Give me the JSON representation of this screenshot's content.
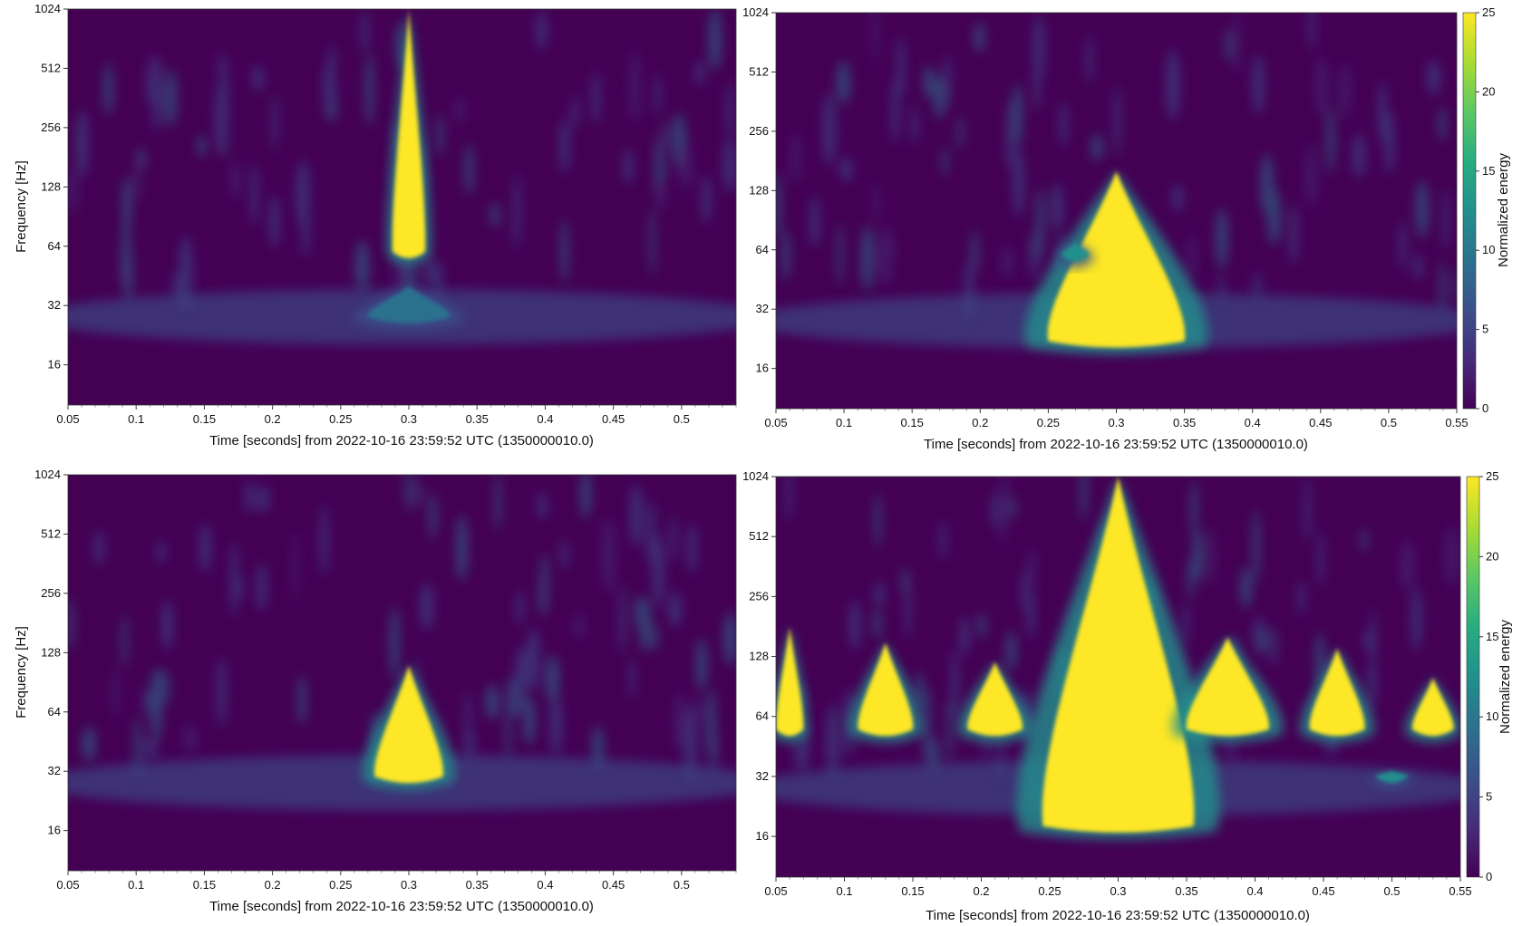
{
  "chart_data": [
    {
      "type": "heatmap",
      "title": "",
      "xlabel": "Time [seconds] from 2022-10-16 23:59:52 UTC (1350000010.0)",
      "ylabel": "Frequency [Hz]",
      "xlim": [
        0.05,
        0.54
      ],
      "ylim": [
        10,
        1024
      ],
      "yscale": "log",
      "xticks": [
        "0.05",
        "0.1",
        "0.15",
        "0.2",
        "0.25",
        "0.3",
        "0.35",
        "0.4",
        "0.45",
        "0.5"
      ],
      "yticks": [
        "16",
        "32",
        "64",
        "128",
        "256",
        "512",
        "1024"
      ],
      "colorbar": null,
      "blobs": [
        {
          "t": 0.3,
          "f": 60,
          "ft": 1024,
          "wt": 0.012,
          "energy": 25
        },
        {
          "t": 0.3,
          "f": 28,
          "ft": 40,
          "wt": 0.03,
          "energy": 10
        }
      ]
    },
    {
      "type": "heatmap",
      "title": "",
      "xlabel": "Time [seconds] from 2022-10-16 23:59:52 UTC (1350000010.0)",
      "ylabel": "",
      "xlim": [
        0.05,
        0.55
      ],
      "ylim": [
        10,
        1024
      ],
      "yscale": "log",
      "xticks": [
        "0.05",
        "0.1",
        "0.15",
        "0.2",
        "0.25",
        "0.3",
        "0.35",
        "0.4",
        "0.45",
        "0.5",
        "0.55"
      ],
      "yticks": [
        "16",
        "32",
        "64",
        "128",
        "256",
        "512",
        "1024"
      ],
      "colorbar": {
        "label": "Normalized energy",
        "ticks": [
          "0",
          "5",
          "10",
          "15",
          "20",
          "25"
        ],
        "vmin": 0,
        "vmax": 25
      },
      "blobs": [
        {
          "t": 0.3,
          "f": 22,
          "ft": 160,
          "wt": 0.05,
          "energy": 25
        },
        {
          "t": 0.27,
          "f": 60,
          "ft": 70,
          "wt": 0.01,
          "energy": 14
        }
      ]
    },
    {
      "type": "heatmap",
      "title": "",
      "xlabel": "Time [seconds] from 2022-10-16 23:59:52 UTC (1350000010.0)",
      "ylabel": "Frequency [Hz]",
      "xlim": [
        0.05,
        0.54
      ],
      "ylim": [
        10,
        1024
      ],
      "yscale": "log",
      "xticks": [
        "0.05",
        "0.1",
        "0.15",
        "0.2",
        "0.25",
        "0.3",
        "0.35",
        "0.4",
        "0.45",
        "0.5"
      ],
      "yticks": [
        "16",
        "32",
        "64",
        "128",
        "256",
        "512",
        "1024"
      ],
      "colorbar": null,
      "blobs": [
        {
          "t": 0.3,
          "f": 30,
          "ft": 110,
          "wt": 0.025,
          "energy": 25
        }
      ]
    },
    {
      "type": "heatmap",
      "title": "",
      "xlabel": "Time [seconds] from 2022-10-16 23:59:52 UTC (1350000010.0)",
      "ylabel": "",
      "xlim": [
        0.05,
        0.55
      ],
      "ylim": [
        10,
        1024
      ],
      "yscale": "log",
      "xticks": [
        "0.05",
        "0.1",
        "0.15",
        "0.2",
        "0.25",
        "0.3",
        "0.35",
        "0.4",
        "0.45",
        "0.5",
        "0.55"
      ],
      "yticks": [
        "16",
        "32",
        "64",
        "128",
        "256",
        "512",
        "1024"
      ],
      "colorbar": {
        "label": "Normalized energy",
        "ticks": [
          "0",
          "5",
          "10",
          "15",
          "20",
          "25"
        ],
        "vmin": 0,
        "vmax": 25
      },
      "blobs": [
        {
          "t": 0.3,
          "f": 18,
          "ft": 1024,
          "wt": 0.055,
          "energy": 25
        },
        {
          "t": 0.06,
          "f": 55,
          "ft": 180,
          "wt": 0.01,
          "energy": 25
        },
        {
          "t": 0.13,
          "f": 55,
          "ft": 150,
          "wt": 0.02,
          "energy": 25
        },
        {
          "t": 0.21,
          "f": 55,
          "ft": 120,
          "wt": 0.02,
          "energy": 25
        },
        {
          "t": 0.38,
          "f": 55,
          "ft": 160,
          "wt": 0.03,
          "energy": 25
        },
        {
          "t": 0.46,
          "f": 55,
          "ft": 140,
          "wt": 0.02,
          "energy": 25
        },
        {
          "t": 0.53,
          "f": 55,
          "ft": 100,
          "wt": 0.015,
          "energy": 25
        },
        {
          "t": 0.5,
          "f": 32,
          "ft": 34,
          "wt": 0.012,
          "energy": 14
        }
      ]
    }
  ],
  "colors": {
    "background": "#440154",
    "peak": "#fde725",
    "colormap": [
      "#440154",
      "#472c7a",
      "#3b518b",
      "#2c718e",
      "#21908d",
      "#27ad81",
      "#5cc863",
      "#aadc32",
      "#fde725"
    ]
  }
}
